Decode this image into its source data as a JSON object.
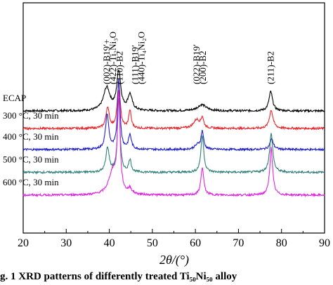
{
  "chart_data": {
    "type": "line",
    "xlabel": "2θ/(°)",
    "xlim": [
      20,
      90
    ],
    "xticks": [
      20,
      30,
      40,
      50,
      60,
      70,
      80,
      90
    ],
    "grid": false,
    "series": [
      {
        "name": "ECAP",
        "color": "#000000",
        "baseline": 0.0,
        "peaks": [
          [
            39.4,
            1.3,
            0.9
          ],
          [
            42.2,
            2.2,
            0.55
          ],
          [
            44.8,
            0.9,
            0.6
          ],
          [
            61.5,
            0.35,
            1.2
          ],
          [
            77.5,
            1.1,
            0.5
          ]
        ]
      },
      {
        "name": "300 °C, 30 min",
        "color": "#e8262b",
        "baseline": -1.0,
        "peaks": [
          [
            39.6,
            1.2,
            0.45
          ],
          [
            42.2,
            2.6,
            0.4
          ],
          [
            44.8,
            1.0,
            0.35
          ],
          [
            60.3,
            0.5,
            0.9
          ],
          [
            61.6,
            0.55,
            0.35
          ],
          [
            77.6,
            1.05,
            0.5
          ]
        ]
      },
      {
        "name": "400 °C, 30 min",
        "color": "#2020c8",
        "baseline": -2.2,
        "peaks": [
          [
            39.5,
            2.0,
            0.45
          ],
          [
            42.2,
            4.0,
            0.35
          ],
          [
            44.8,
            0.8,
            0.4
          ],
          [
            60.5,
            0.25,
            0.8
          ],
          [
            61.6,
            1.0,
            0.35
          ],
          [
            77.7,
            0.6,
            0.5
          ]
        ]
      },
      {
        "name": "500 °C, 30 min",
        "color": "#2f7f79",
        "baseline": -3.5,
        "peaks": [
          [
            39.6,
            1.4,
            0.45
          ],
          [
            42.2,
            4.2,
            0.35
          ],
          [
            44.8,
            0.7,
            0.35
          ],
          [
            61.6,
            2.1,
            0.4
          ],
          [
            77.6,
            2.2,
            0.45
          ]
        ]
      },
      {
        "name": "600 °C, 30 min",
        "color": "#e024e0",
        "baseline": -4.8,
        "peaks": [
          [
            40.8,
            1.3,
            1.1
          ],
          [
            42.2,
            5.5,
            0.35
          ],
          [
            44.8,
            0.3,
            0.5
          ],
          [
            61.6,
            1.55,
            0.4
          ],
          [
            77.6,
            2.7,
            0.4
          ]
        ]
      }
    ],
    "annotations": [
      {
        "text": "(002)-B19′+",
        "x": 39.4
      },
      {
        "text": "(422)-Ti₂Ni₃O",
        "x": 40.9
      },
      {
        "text": "(110)-B2",
        "x": 42.4
      },
      {
        "text": "(111)-B19′",
        "x": 46.0
      },
      {
        "text": "(440)-Ti₄Ni₂O",
        "x": 47.5
      },
      {
        "text": "(022)-B19′",
        "x": 60.3
      },
      {
        "text": "(200)-B2",
        "x": 61.8
      },
      {
        "text": "(211)-B2",
        "x": 77.5
      }
    ]
  },
  "caption": "g. 1 XRD patterns of differently treated Ti₅₀Ni₅₀ alloy"
}
